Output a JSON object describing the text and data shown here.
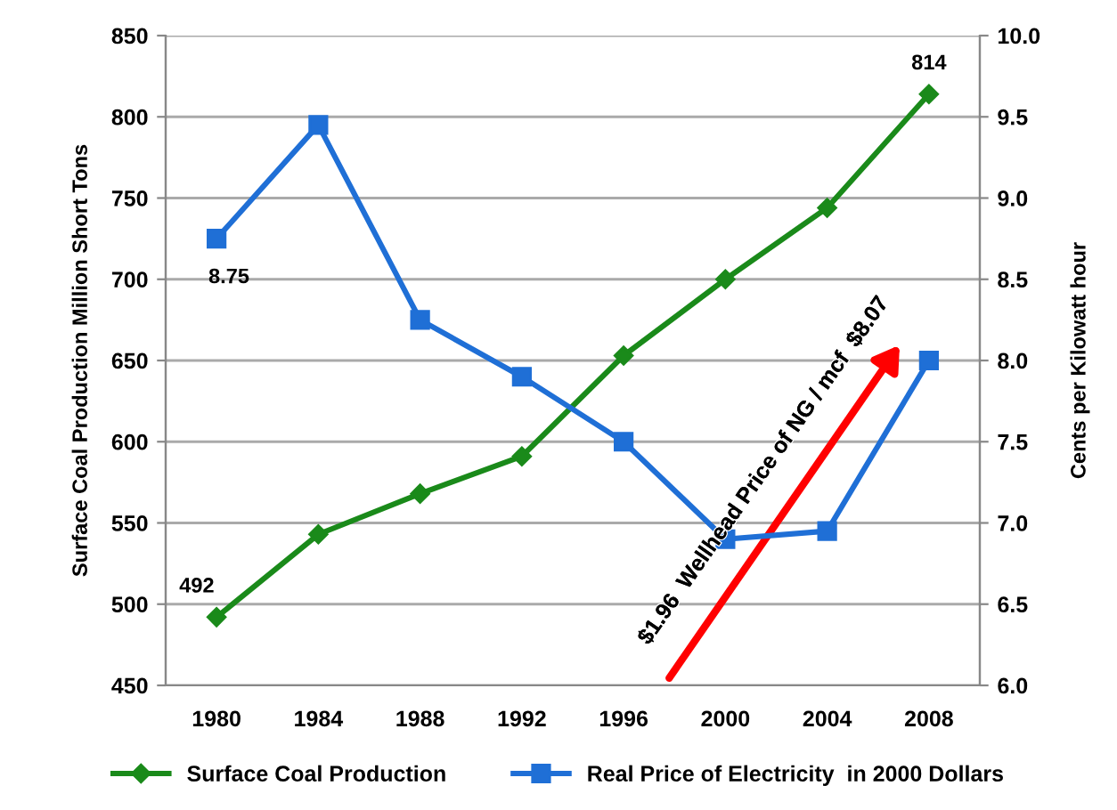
{
  "chart_data": {
    "type": "line",
    "categories": [
      "1980",
      "1984",
      "1988",
      "1992",
      "1996",
      "2000",
      "2004",
      "2008"
    ],
    "ylabel": "Surface Coal Production Million Short Tons",
    "y2label": "Cents per Kilowatt hour",
    "ylim": [
      450,
      850
    ],
    "yticks": [
      450,
      500,
      550,
      600,
      650,
      700,
      750,
      800,
      850
    ],
    "y2lim": [
      6.0,
      10.0
    ],
    "y2ticks": [
      {
        "value": 6,
        "label": "6.0"
      },
      {
        "value": 6.5,
        "label": "6.5"
      },
      {
        "value": 7,
        "label": "7.0"
      },
      {
        "value": 7.5,
        "label": "7.5"
      },
      {
        "value": 8,
        "label": "8.0"
      },
      {
        "value": 8.5,
        "label": "8.5"
      },
      {
        "value": 9,
        "label": "9.0"
      },
      {
        "value": 9.5,
        "label": "9.5"
      },
      {
        "value": 10,
        "label": "10.0"
      }
    ],
    "grid": "y",
    "legend": "bottom",
    "series": [
      {
        "name": "Surface Coal Production",
        "color": "#1a8a1a",
        "marker": "diamond",
        "values": [
          492,
          543,
          568,
          591,
          653,
          700,
          744,
          814
        ],
        "value_labels": [
          "492",
          null,
          null,
          null,
          null,
          null,
          null,
          "814"
        ]
      },
      {
        "name": "Real Price of Electricity  in 2000 Dollars",
        "color": "#1f6fd6",
        "marker": "square",
        "axis": "y2",
        "values": [
          8.75,
          9.45,
          8.25,
          7.9,
          7.5,
          6.9,
          6.95,
          8.0
        ],
        "value_labels": [
          "8.75",
          null,
          null,
          null,
          null,
          null,
          null,
          null
        ]
      }
    ],
    "annotations": [
      "$1.96  Wellhead Price of NG / mcf  $8.07"
    ]
  }
}
